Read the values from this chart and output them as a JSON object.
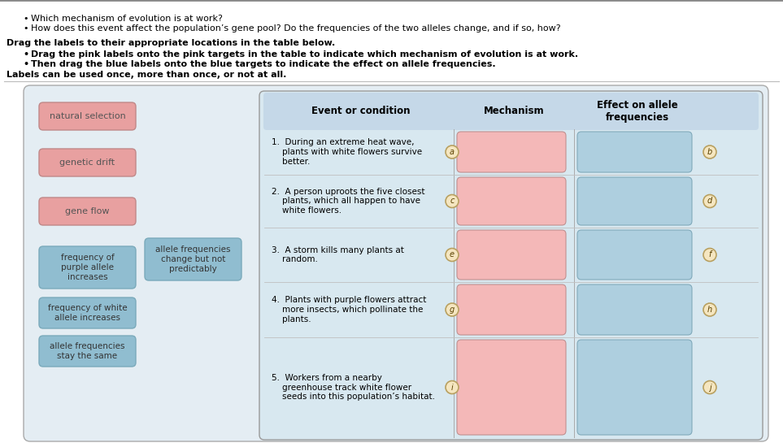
{
  "top_bullets": [
    "Which mechanism of evolution is at work?",
    "How does this event affect the population’s gene pool? Do the frequencies of the two alleles change, and if so, how?"
  ],
  "bold_line": "Drag the labels to their appropriate locations in the table below.",
  "sub_bullets": [
    "Drag the pink labels onto the pink targets in the table to indicate which mechanism of evolution is at work.",
    "Then drag the blue labels onto the blue targets to indicate the effect on allele frequencies."
  ],
  "note_line": "Labels can be used once, more than once, or not at all.",
  "pink_labels": [
    "natural selection",
    "genetic drift",
    "gene flow"
  ],
  "blue_labels": [
    "frequency of\npurple allele\nincreases",
    "frequency of white\nallele increases",
    "allele frequencies\nstay the same"
  ],
  "floating_blue_label": "allele frequencies\nchange but not\npredictably",
  "table_header": [
    "Event or condition",
    "Mechanism",
    "Effect on allele\nfrequencies"
  ],
  "events": [
    "1.  During an extreme heat wave,\n    plants with white flowers survive\n    better.",
    "2.  A person uproots the five closest\n    plants, which all happen to have\n    white flowers.",
    "3.  A storm kills many plants at\n    random.",
    "4.  Plants with purple flowers attract\n    more insects, which pollinate the\n    plants.",
    "5.  Workers from a nearby\n    greenhouse track white flower\n    seeds into this population’s habitat."
  ],
  "circle_labels_left": [
    "a",
    "c",
    "e",
    "g",
    "i"
  ],
  "circle_labels_right": [
    "b",
    "d",
    "f",
    "h",
    "j"
  ],
  "pink_box_color": "#f4b8b8",
  "blue_box_color": "#aecfdf",
  "pink_label_color": "#e8a0a0",
  "blue_label_color": "#90bdd0",
  "table_header_bg": "#c5d8e8",
  "table_outer_bg": "#dce9f0",
  "circle_fill": "#f5e6c0",
  "circle_edge": "#b8a060",
  "outer_panel_color": "#e4edf3"
}
